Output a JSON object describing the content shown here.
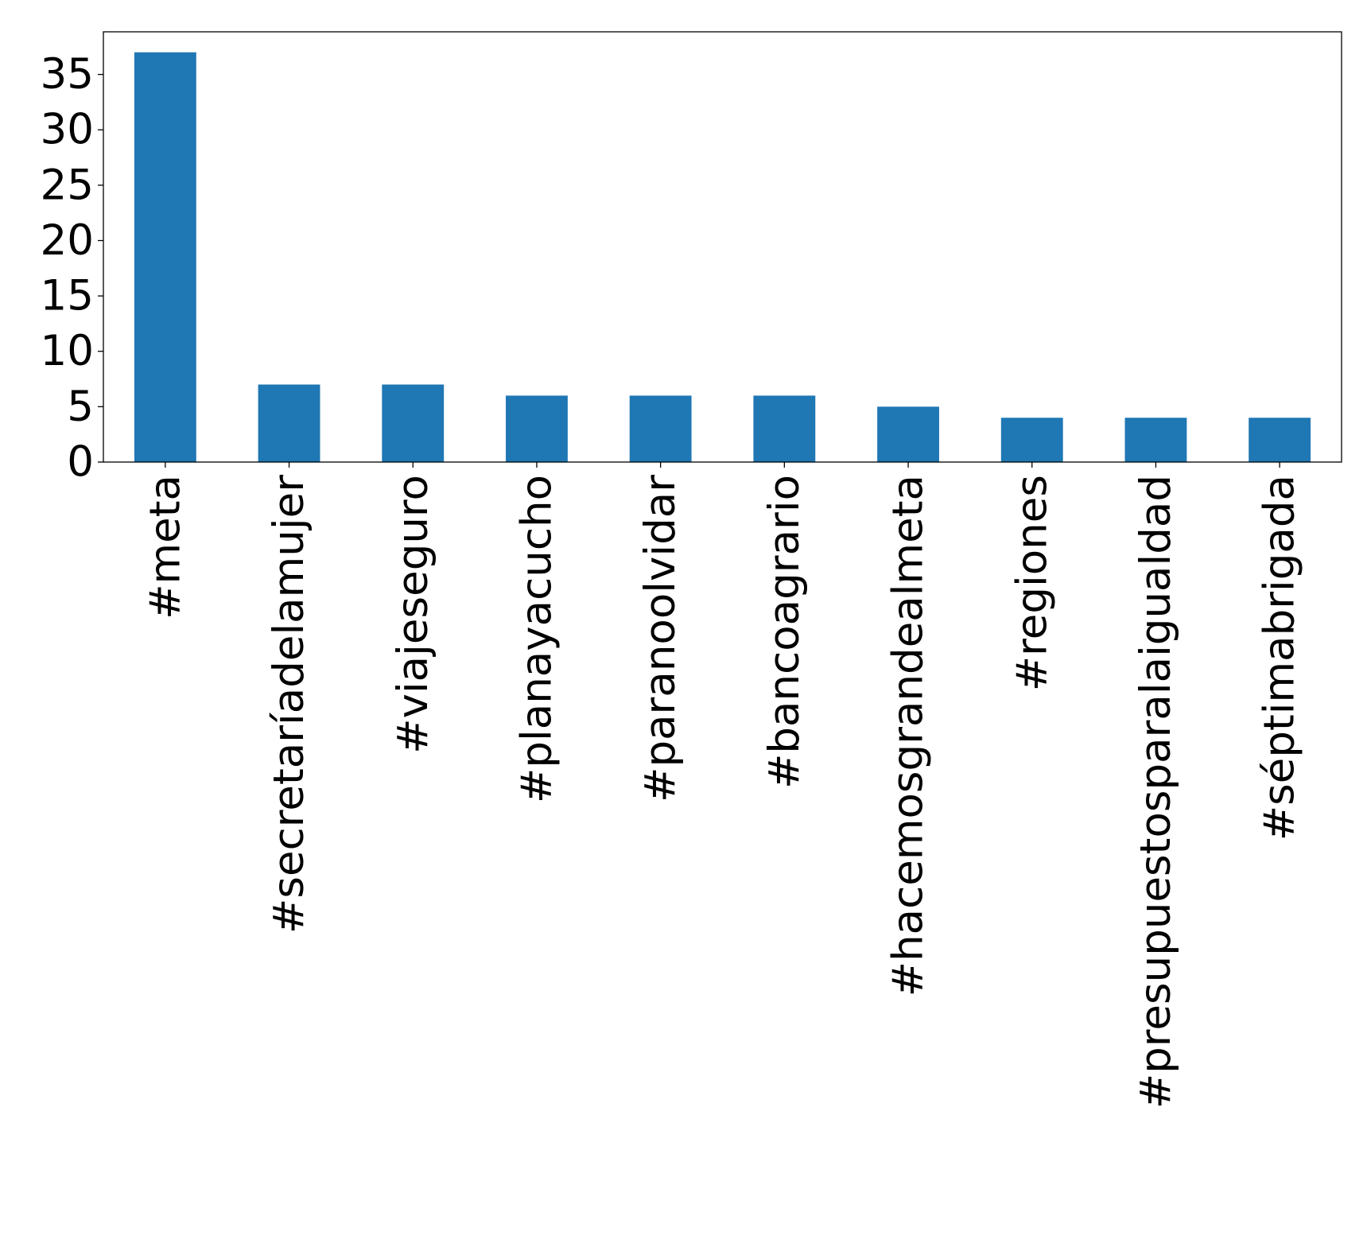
{
  "chart_data": {
    "type": "bar",
    "title": "",
    "xlabel": "",
    "ylabel": "",
    "categories": [
      "#meta",
      "#secretaríadelamujer",
      "#viajeseguro",
      "#planayacucho",
      "#paranoolvidar",
      "#bancoagrario",
      "#hacemosgrandealmeta",
      "#regiones",
      "#presupuestosparalaigualdad",
      "#séptimabrigada"
    ],
    "values": [
      37,
      7,
      7,
      6,
      6,
      6,
      5,
      4,
      4,
      4
    ],
    "ylim": [
      0,
      38.85
    ],
    "yticks": [
      "0",
      "5",
      "10",
      "15",
      "20",
      "25",
      "30",
      "35"
    ],
    "grid": false,
    "legend": "none",
    "bar_color": "#1f77b4"
  }
}
